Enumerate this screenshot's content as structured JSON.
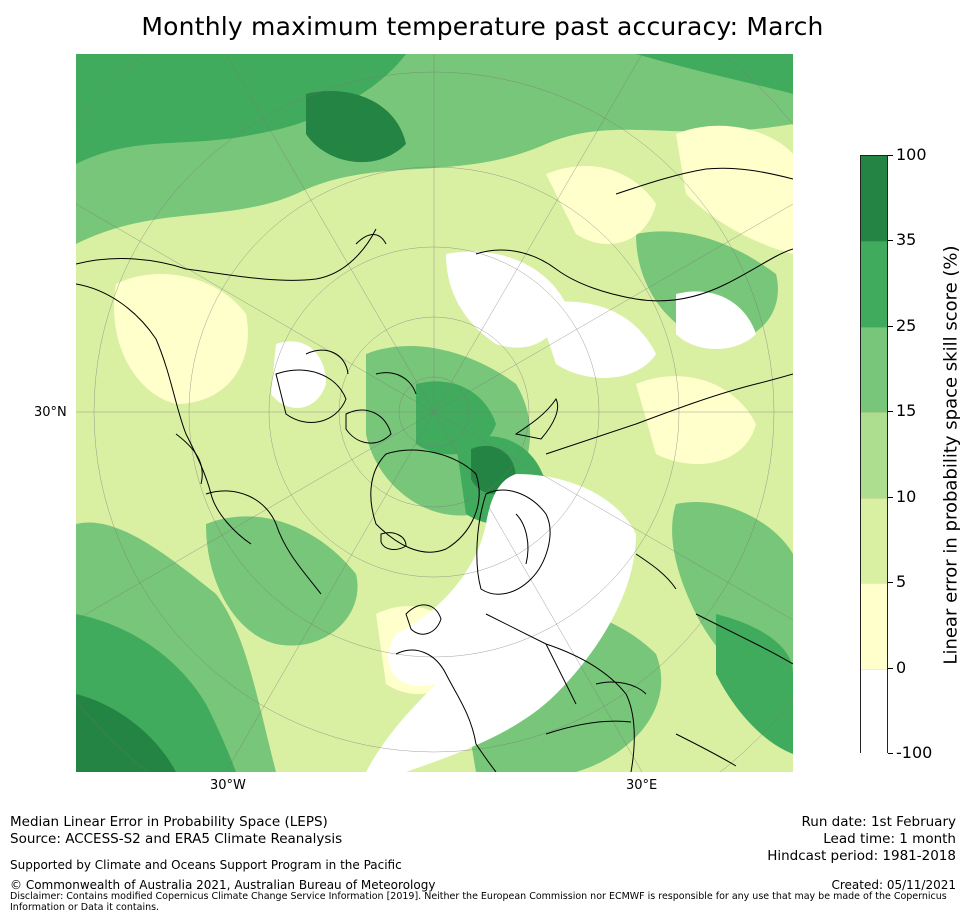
{
  "title": "Monthly maximum temperature past accuracy: March",
  "map": {
    "projection": "north-polar-stereographic",
    "latitude_labels": [
      "30°N"
    ],
    "longitude_labels": [
      "30°W",
      "30°E"
    ]
  },
  "colorbar": {
    "label": "Linear error in probability space skill score (%)",
    "ticks": [
      "100",
      "35",
      "25",
      "15",
      "10",
      "5",
      "0",
      "-100"
    ],
    "bins": [
      {
        "from": -100,
        "to": 0,
        "color": "#ffffff"
      },
      {
        "from": 0,
        "to": 5,
        "color": "#ffffcc"
      },
      {
        "from": 5,
        "to": 10,
        "color": "#d9f0a3"
      },
      {
        "from": 10,
        "to": 15,
        "color": "#addd8e"
      },
      {
        "from": 15,
        "to": 25,
        "color": "#78c679"
      },
      {
        "from": 25,
        "to": 35,
        "color": "#41ab5d"
      },
      {
        "from": 35,
        "to": 100,
        "color": "#238443"
      }
    ]
  },
  "info": {
    "metric": "Median Linear Error in Probability Space (LEPS)",
    "source": "Source: ACCESS-S2 and ERA5 Climate Reanalysis",
    "support": "Supported by Climate and Oceans Support Program in the Pacific",
    "copyright": "© Commonwealth of Australia 2021, Australian Bureau of Meteorology",
    "disclaimer": "Disclaimer: Contains modified Copernicus Climate Change Service Information [2019]. Neither the European Commission nor ECMWF is responsible for any use that may be made of the Copernicus Information or Data it contains.",
    "run_date": "Run date: 1st February",
    "lead_time": "Lead time: 1 month",
    "hindcast": "Hindcast period: 1981-2018",
    "created": "Created: 05/11/2021"
  }
}
